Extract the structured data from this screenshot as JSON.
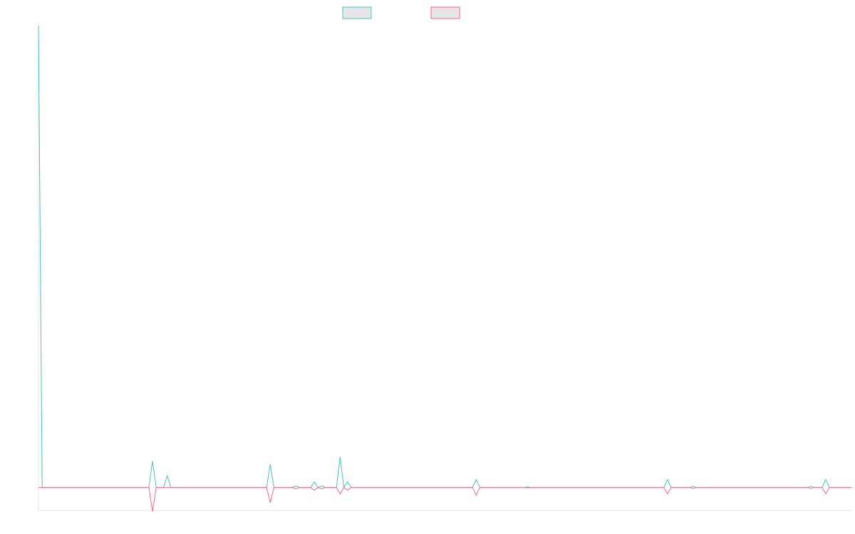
{
  "chart_data": {
    "type": "line",
    "x": [
      0,
      1,
      2,
      3,
      4,
      5,
      6,
      7,
      8,
      9,
      10,
      11,
      12,
      13,
      14,
      15,
      16,
      17,
      18,
      19,
      20,
      21,
      22,
      23,
      24,
      25,
      26,
      27,
      28,
      29,
      30,
      31,
      32,
      33,
      34,
      35,
      36,
      37,
      38,
      39,
      40,
      41,
      42,
      43,
      44,
      45,
      46,
      47,
      48,
      49,
      50,
      51,
      52,
      53,
      54,
      55,
      56,
      57,
      58,
      59,
      60,
      61,
      62,
      63,
      64,
      65,
      66,
      67,
      68,
      69,
      70,
      71,
      72,
      73,
      74,
      75,
      76,
      77,
      78,
      79,
      80,
      81,
      82,
      83,
      84,
      85,
      86,
      87,
      88,
      89,
      90,
      91,
      92,
      93,
      94,
      95,
      96,
      97,
      98,
      99,
      100,
      101,
      102,
      103,
      104,
      105,
      106,
      107,
      108,
      109,
      110,
      111,
      112,
      113,
      114,
      115,
      116,
      117,
      118,
      119,
      120,
      121,
      122,
      123,
      124,
      125,
      126,
      127,
      128,
      129,
      130,
      131,
      132,
      133,
      134,
      135,
      136,
      137,
      138,
      139,
      140,
      141,
      142,
      143,
      144,
      145,
      146,
      147,
      148,
      149,
      150,
      151,
      152,
      153,
      154,
      155,
      156,
      157,
      158,
      159,
      160,
      161,
      162,
      163,
      164,
      165,
      166,
      167,
      168,
      169,
      170,
      171,
      172,
      173,
      174,
      175,
      176,
      177,
      178,
      179,
      180,
      181,
      182,
      183,
      184,
      185,
      186,
      187,
      188,
      189,
      190,
      191,
      192,
      193,
      194,
      195,
      196,
      197,
      198,
      199,
      200,
      201,
      202,
      203,
      204,
      205,
      206,
      207,
      208,
      209,
      210,
      211,
      212,
      213,
      214,
      215,
      216,
      217,
      218,
      219,
      220,
      221
    ],
    "series": [
      {
        "color": "#4bc0c0",
        "values": [
          100,
          0,
          0,
          0,
          0,
          0,
          0,
          0,
          0,
          0,
          0,
          0,
          0,
          0,
          0,
          0,
          0,
          0,
          0,
          0,
          0,
          0,
          0,
          0,
          0,
          0,
          0,
          0,
          0,
          0,
          0,
          5.7,
          0,
          0,
          0,
          2.5,
          0,
          0,
          0,
          0,
          0,
          0,
          0,
          0,
          0,
          0,
          0,
          0,
          0,
          0,
          0,
          0,
          0,
          0,
          0,
          0,
          0,
          0,
          0,
          0,
          0,
          0,
          0,
          5,
          0,
          0,
          0,
          0,
          0,
          0,
          0.3,
          0,
          0,
          0,
          0,
          1.2,
          0,
          0.3,
          0,
          0,
          0,
          0,
          6.6,
          0,
          1.2,
          0,
          0,
          0,
          0,
          0,
          0,
          0,
          0,
          0,
          0,
          0,
          0,
          0,
          0,
          0,
          0,
          0,
          0,
          0,
          0,
          0,
          0,
          0,
          0,
          0,
          0,
          0,
          0,
          0,
          0,
          0,
          0,
          0,
          0,
          1.7,
          0,
          0,
          0,
          0,
          0,
          0,
          0,
          0,
          0,
          0,
          0,
          0,
          0,
          0.1,
          0,
          0,
          0,
          0,
          0,
          0,
          0,
          0,
          0,
          0,
          0,
          0,
          0,
          0,
          0,
          0,
          0,
          0,
          0,
          0,
          0,
          0,
          0,
          0,
          0,
          0,
          0,
          0,
          0,
          0,
          0,
          0,
          0,
          0,
          0,
          0,
          0,
          1.7,
          0,
          0,
          0,
          0,
          0,
          0,
          0.2,
          0,
          0,
          0,
          0,
          0,
          0,
          0,
          0,
          0,
          0,
          0,
          0,
          0,
          0,
          0,
          0,
          0,
          0,
          0,
          0,
          0,
          0,
          0,
          0,
          0,
          0,
          0,
          0,
          0,
          0,
          0,
          0.2,
          0,
          0,
          0,
          1.7,
          0,
          0,
          0,
          0,
          0,
          0,
          0
        ]
      },
      {
        "color": "#ff6384",
        "values": [
          0,
          0,
          0,
          0,
          0,
          0,
          0,
          0,
          0,
          0,
          0,
          0,
          0,
          0,
          0,
          0,
          0,
          0,
          0,
          0,
          0,
          0,
          0,
          0,
          0,
          0,
          0,
          0,
          0,
          0,
          0,
          -5.2,
          0,
          0,
          0,
          0,
          0,
          0,
          0,
          0,
          0,
          0,
          0,
          0,
          0,
          0,
          0,
          0,
          0,
          0,
          0,
          0,
          0,
          0,
          0,
          0,
          0,
          0,
          0,
          0,
          0,
          0,
          0,
          -3.3,
          0,
          0,
          0,
          0,
          0,
          0,
          -0.3,
          0,
          0,
          0,
          0,
          -0.6,
          0,
          -0.3,
          0,
          0,
          0,
          0,
          -1.4,
          0,
          -0.6,
          0,
          0,
          0,
          0,
          0,
          0,
          0,
          0,
          0,
          0,
          0,
          0,
          0,
          0,
          0,
          0,
          0,
          0,
          0,
          0,
          0,
          0,
          0,
          0,
          0,
          0,
          0,
          0,
          0,
          0,
          0,
          0,
          0,
          0,
          -1.7,
          0,
          0,
          0,
          0,
          0,
          0,
          0,
          0,
          0,
          0,
          0,
          0,
          0,
          -0.1,
          0,
          0,
          0,
          0,
          0,
          0,
          0,
          0,
          0,
          0,
          0,
          0,
          0,
          0,
          0,
          0,
          0,
          0,
          0,
          0,
          0,
          0,
          0,
          0,
          0,
          0,
          0,
          0,
          0,
          0,
          0,
          0,
          0,
          0,
          0,
          0,
          0,
          -1.4,
          0,
          0,
          0,
          0,
          0,
          0,
          -0.2,
          0,
          0,
          0,
          0,
          0,
          0,
          0,
          0,
          0,
          0,
          0,
          0,
          0,
          0,
          0,
          0,
          0,
          0,
          0,
          0,
          0,
          0,
          0,
          0,
          0,
          0,
          0,
          0,
          0,
          0,
          0,
          -0.2,
          0,
          0,
          0,
          -1.4,
          0,
          0,
          0,
          0,
          0,
          0,
          0
        ]
      }
    ],
    "xlim": [
      0,
      221
    ],
    "ylim": [
      -5,
      100
    ],
    "grid": false,
    "legend": "top-center"
  }
}
